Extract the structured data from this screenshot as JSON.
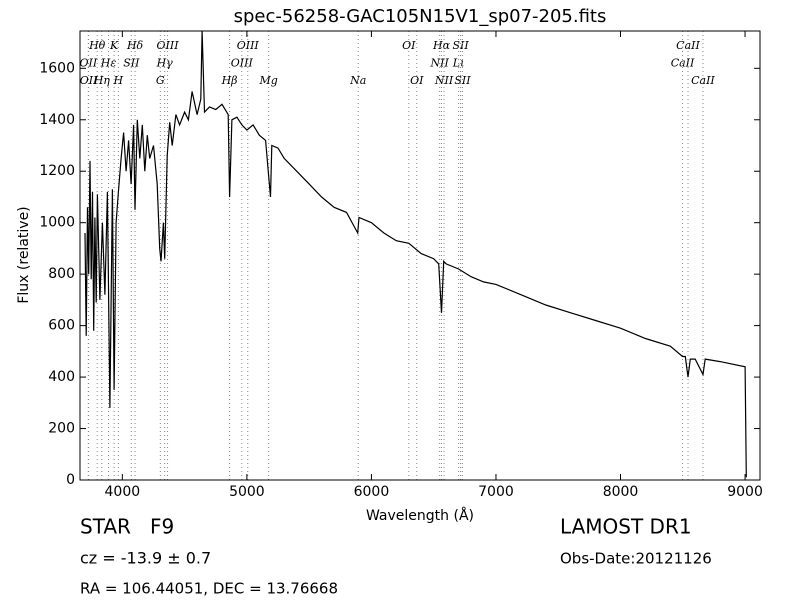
{
  "chart_data": {
    "type": "line",
    "title": "spec-56258-GAC105N15V1_sp07-205.fits",
    "x_label": "Wavelength (Å)",
    "y_label": "Flux (relative)",
    "xlim": [
      3660,
      9120
    ],
    "ylim": [
      0,
      1745
    ],
    "xticks": [
      4000,
      5000,
      6000,
      7000,
      8000,
      9000
    ],
    "yticks": [
      0,
      200,
      400,
      600,
      800,
      1000,
      1200,
      1400,
      1600
    ],
    "series": [
      {
        "color": "#000000",
        "x": [
          3700,
          3710,
          3720,
          3730,
          3740,
          3750,
          3760,
          3770,
          3780,
          3790,
          3800,
          3820,
          3840,
          3860,
          3880,
          3900,
          3920,
          3934,
          3950,
          3968,
          3990,
          4010,
          4030,
          4050,
          4070,
          4090,
          4102,
          4120,
          4140,
          4160,
          4180,
          4200,
          4220,
          4250,
          4280,
          4300,
          4310,
          4330,
          4340,
          4360,
          4380,
          4400,
          4430,
          4460,
          4500,
          4530,
          4560,
          4600,
          4630,
          4640,
          4660,
          4700,
          4750,
          4800,
          4850,
          4861,
          4880,
          4920,
          4960,
          5000,
          5050,
          5100,
          5150,
          5175,
          5190,
          5200,
          5250,
          5300,
          5400,
          5500,
          5600,
          5700,
          5800,
          5890,
          5900,
          6000,
          6100,
          6200,
          6300,
          6400,
          6500,
          6540,
          6563,
          6580,
          6600,
          6700,
          6800,
          6900,
          7000,
          7200,
          7400,
          7600,
          7800,
          8000,
          8200,
          8400,
          8498,
          8520,
          8542,
          8560,
          8600,
          8662,
          8680,
          8800,
          9000,
          9010
        ],
        "values": [
          960,
          560,
          1060,
          800,
          1240,
          780,
          1120,
          580,
          1020,
          690,
          1110,
          700,
          1000,
          720,
          1120,
          280,
          1130,
          350,
          1000,
          1120,
          1250,
          1350,
          1200,
          1320,
          1150,
          1380,
          1050,
          1400,
          1250,
          1380,
          1200,
          1340,
          1250,
          1300,
          1150,
          900,
          850,
          1000,
          860,
          1260,
          1390,
          1300,
          1420,
          1380,
          1430,
          1400,
          1510,
          1420,
          1480,
          1745,
          1430,
          1450,
          1440,
          1460,
          1420,
          1100,
          1400,
          1410,
          1380,
          1360,
          1380,
          1340,
          1320,
          1180,
          1100,
          1300,
          1290,
          1250,
          1200,
          1150,
          1100,
          1060,
          1040,
          960,
          1020,
          1000,
          960,
          930,
          920,
          880,
          860,
          840,
          650,
          850,
          840,
          820,
          790,
          770,
          760,
          720,
          680,
          650,
          620,
          590,
          550,
          520,
          480,
          480,
          400,
          470,
          470,
          410,
          470,
          460,
          440,
          10
        ]
      }
    ],
    "line_color": "#4caf50",
    "line_ids": [
      [
        {
          "label": "Hθ",
          "wavelength": 3798
        },
        {
          "label": "K",
          "wavelength": 3934
        },
        {
          "label": "Hδ",
          "wavelength": 4102
        },
        {
          "label": "OIII",
          "wavelength": 4363
        },
        {
          "label": "OIII",
          "wavelength": 5007
        },
        {
          "label": "OI",
          "wavelength": 6300
        },
        {
          "label": "Hα",
          "wavelength": 6563
        },
        {
          "label": "SII",
          "wavelength": 6716
        },
        {
          "label": "CaII",
          "wavelength": 8542
        }
      ],
      [
        {
          "label": "OII",
          "wavelength": 3727
        },
        {
          "label": "Hε",
          "wavelength": 3889
        },
        {
          "label": "SII",
          "wavelength": 4072
        },
        {
          "label": "Hγ",
          "wavelength": 4340
        },
        {
          "label": "OIII",
          "wavelength": 4959
        },
        {
          "label": "NII",
          "wavelength": 6548
        },
        {
          "label": "Lι",
          "wavelength": 6700
        },
        {
          "label": "CaII",
          "wavelength": 8498
        }
      ],
      [
        {
          "label": "OII",
          "wavelength": 3729
        },
        {
          "label": "Hη",
          "wavelength": 3835
        },
        {
          "label": "H",
          "wavelength": 3968
        },
        {
          "label": "G",
          "wavelength": 4305
        },
        {
          "label": "Hβ",
          "wavelength": 4861
        },
        {
          "label": "Mg",
          "wavelength": 5175
        },
        {
          "label": "Na",
          "wavelength": 5894
        },
        {
          "label": "OI",
          "wavelength": 6364
        },
        {
          "label": "NII",
          "wavelength": 6583
        },
        {
          "label": "SII",
          "wavelength": 6731
        },
        {
          "label": "CaII",
          "wavelength": 8662
        }
      ]
    ]
  },
  "info": {
    "class": "STAR",
    "subclass": "F9",
    "redshift": "cz = -13.9 ± 0.7",
    "coords": "RA = 106.44051, DEC = 13.76668",
    "release": "LAMOST DR1",
    "obs_date": "Obs-Date:20121126"
  }
}
